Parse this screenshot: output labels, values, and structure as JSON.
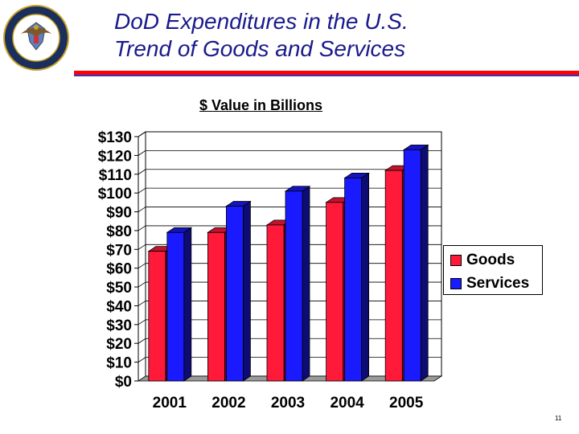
{
  "slide": {
    "title_line1": "DoD Expenditures in the U.S.",
    "title_line2": "Trend of Goods and Services",
    "subtitle": "$ Value in Billions",
    "page_number": "11",
    "seal_icon": "dod-seal-icon"
  },
  "colors": {
    "title": "#1a1a8c",
    "rule_red": "#ff0000",
    "rule_blue": "#3333cc",
    "goods": "#ff1a3a",
    "services": "#1a1aff"
  },
  "chart_data": {
    "type": "bar",
    "title": "$ Value in Billions",
    "categories": [
      "2001",
      "2002",
      "2003",
      "2004",
      "2005"
    ],
    "series": [
      {
        "name": "Goods",
        "values": [
          69,
          79,
          83,
          95,
          112
        ]
      },
      {
        "name": "Services",
        "values": [
          79,
          93,
          101,
          108,
          123
        ]
      }
    ],
    "ylim": [
      0,
      130
    ],
    "yticks": [
      0,
      10,
      20,
      30,
      40,
      50,
      60,
      70,
      80,
      90,
      100,
      110,
      120,
      130
    ],
    "ytick_labels": [
      "$0",
      "$10",
      "$20",
      "$30",
      "$40",
      "$50",
      "$60",
      "$70",
      "$80",
      "$90",
      "$100",
      "$110",
      "$120",
      "$130"
    ],
    "grid": true,
    "legend_position": "right",
    "xlabel": "",
    "ylabel": ""
  }
}
